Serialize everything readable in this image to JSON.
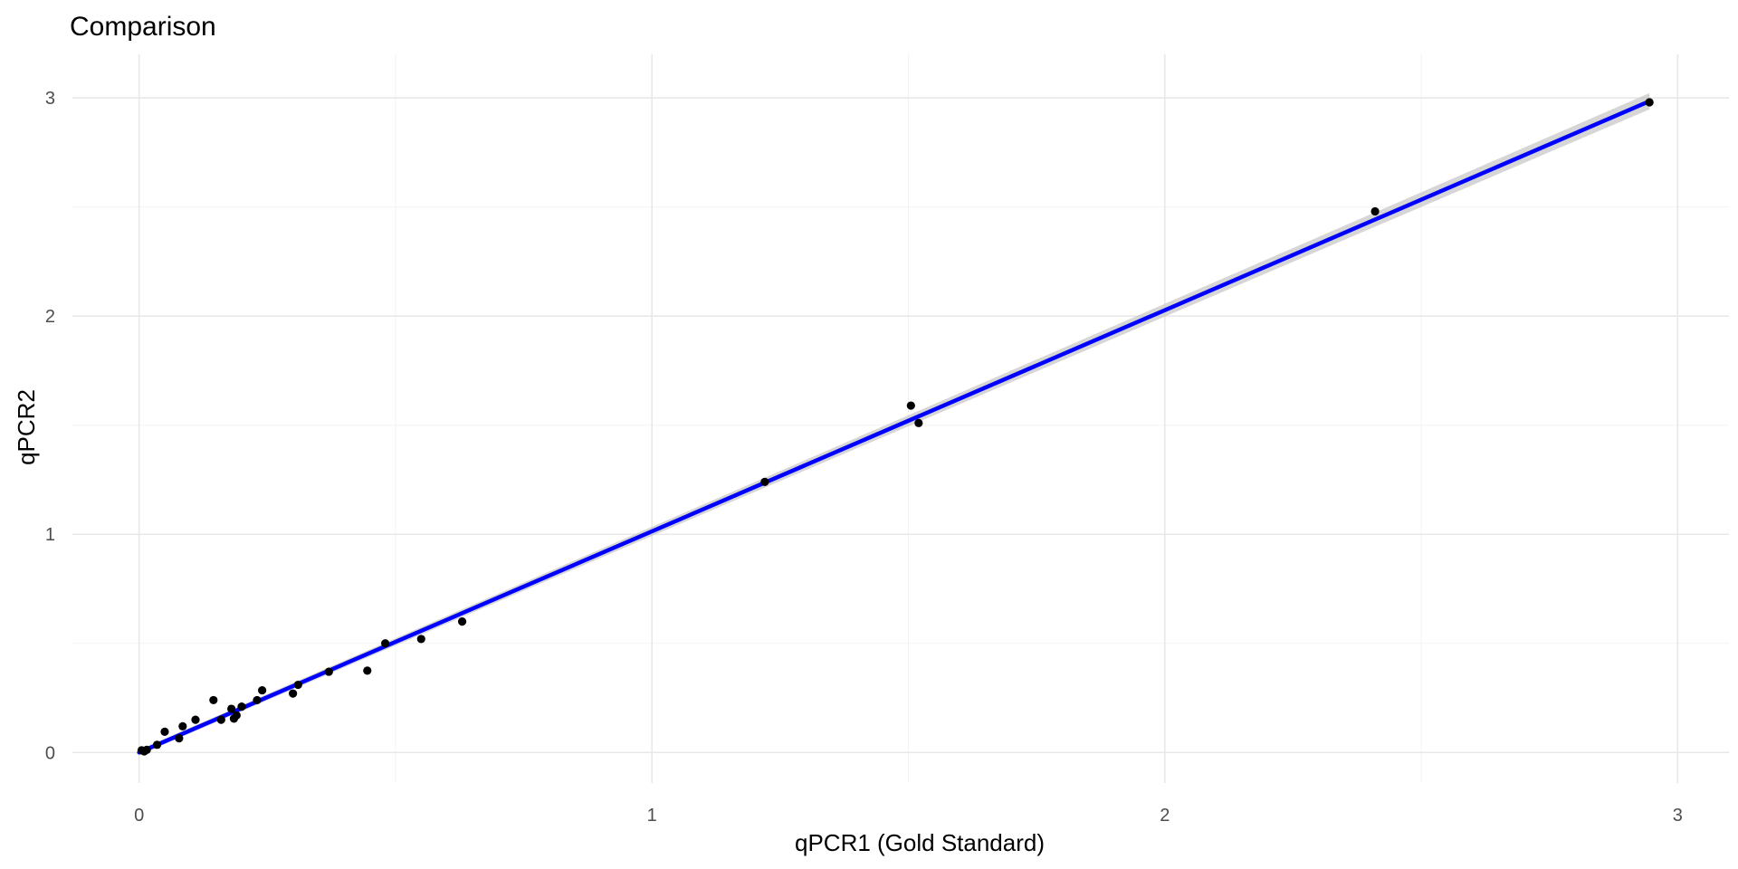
{
  "chart_data": {
    "type": "scatter",
    "title": "Comparison",
    "xlabel": "qPCR1 (Gold Standard)",
    "ylabel": "qPCR2",
    "xlim": [
      -0.13,
      3.1
    ],
    "ylim": [
      -0.14,
      3.2
    ],
    "x_ticks": [
      0,
      1,
      2,
      3
    ],
    "x_tick_labels": [
      "0",
      "1",
      "2",
      "3"
    ],
    "y_ticks": [
      0,
      1,
      2,
      3
    ],
    "y_tick_labels": [
      "0",
      "1",
      "2",
      "3"
    ],
    "grid": true,
    "legend": "none",
    "colors": {
      "points": "#000000",
      "fit_line": "#0000ff",
      "confidence_band": "#c8c8c8",
      "grid": "#e8e8e8"
    },
    "points": [
      {
        "x": 0.005,
        "y": 0.01
      },
      {
        "x": 0.01,
        "y": 0.005
      },
      {
        "x": 0.015,
        "y": 0.012
      },
      {
        "x": 0.035,
        "y": 0.035
      },
      {
        "x": 0.05,
        "y": 0.095
      },
      {
        "x": 0.078,
        "y": 0.065
      },
      {
        "x": 0.085,
        "y": 0.12
      },
      {
        "x": 0.11,
        "y": 0.15
      },
      {
        "x": 0.145,
        "y": 0.24
      },
      {
        "x": 0.16,
        "y": 0.15
      },
      {
        "x": 0.18,
        "y": 0.2
      },
      {
        "x": 0.185,
        "y": 0.155
      },
      {
        "x": 0.19,
        "y": 0.17
      },
      {
        "x": 0.2,
        "y": 0.21
      },
      {
        "x": 0.23,
        "y": 0.24
      },
      {
        "x": 0.24,
        "y": 0.285
      },
      {
        "x": 0.3,
        "y": 0.27
      },
      {
        "x": 0.31,
        "y": 0.31
      },
      {
        "x": 0.37,
        "y": 0.37
      },
      {
        "x": 0.445,
        "y": 0.375
      },
      {
        "x": 0.48,
        "y": 0.5
      },
      {
        "x": 0.55,
        "y": 0.52
      },
      {
        "x": 0.63,
        "y": 0.6
      },
      {
        "x": 1.22,
        "y": 1.24
      },
      {
        "x": 1.505,
        "y": 1.59
      },
      {
        "x": 1.52,
        "y": 1.51
      },
      {
        "x": 2.41,
        "y": 2.48
      },
      {
        "x": 2.945,
        "y": 2.98
      }
    ],
    "fit_line": {
      "x": [
        0,
        2.945
      ],
      "y": [
        0,
        2.985
      ]
    }
  }
}
